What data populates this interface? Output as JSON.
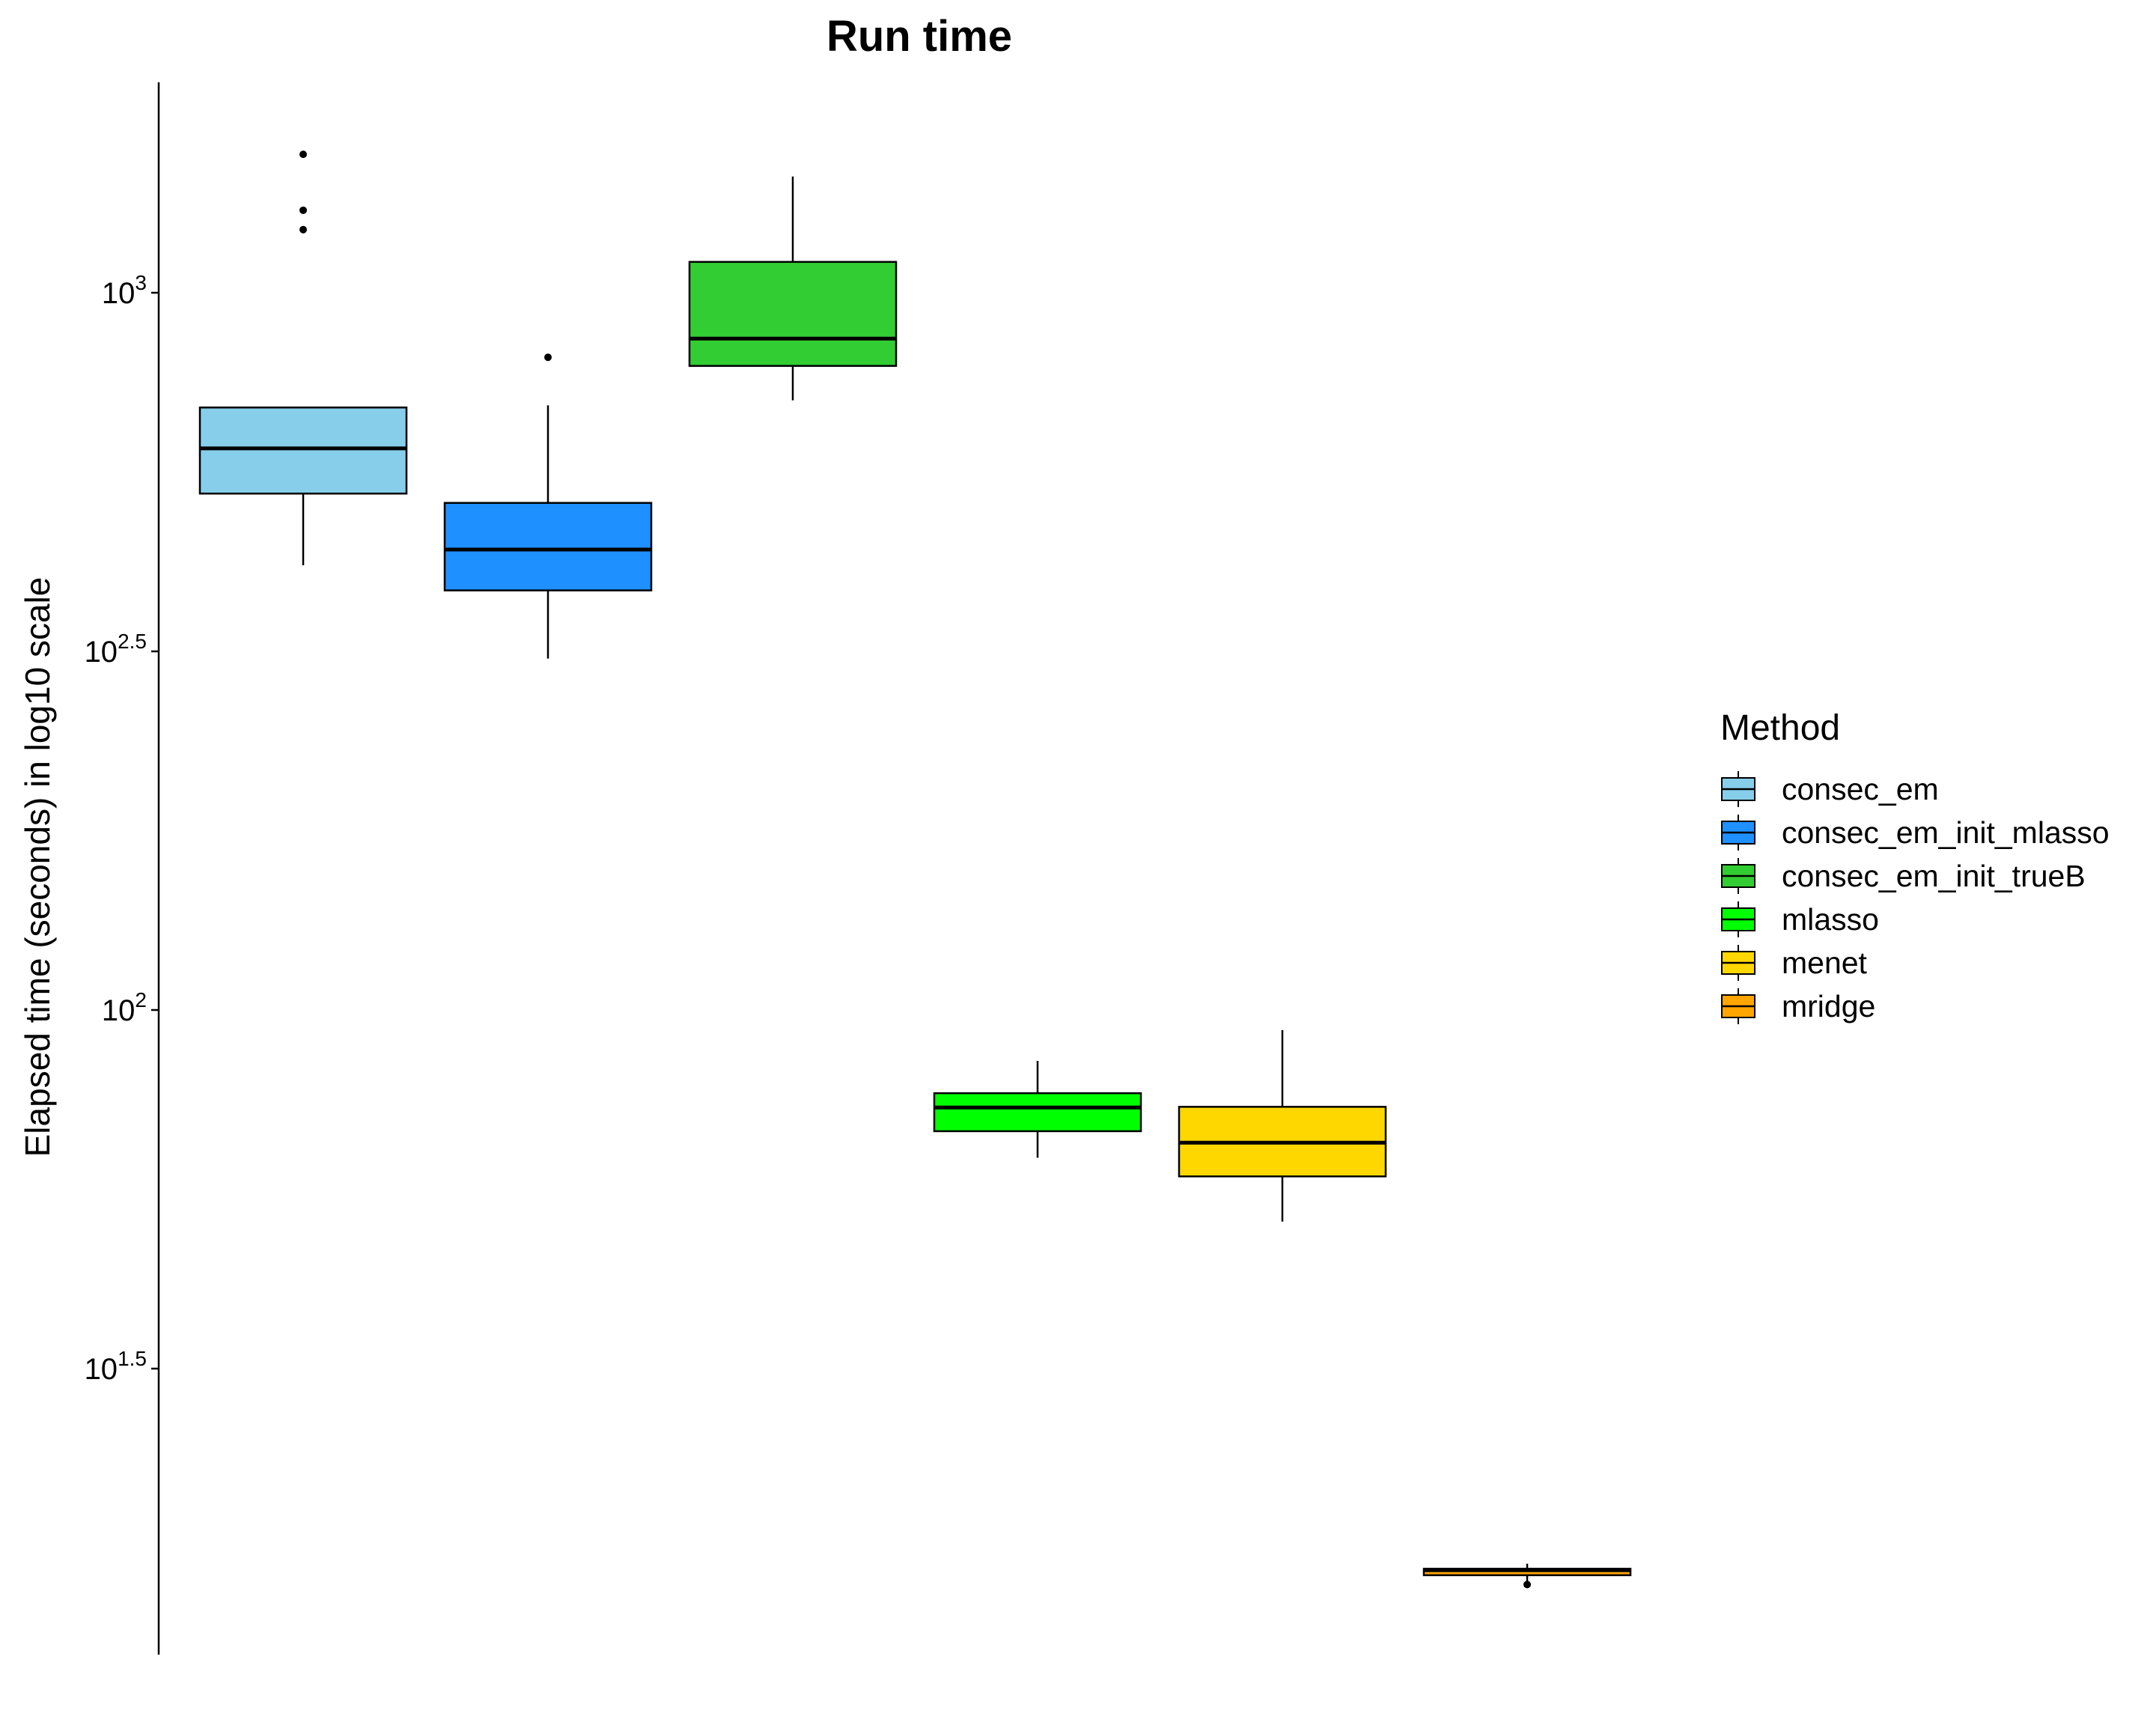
{
  "chart_data": {
    "type": "boxplot",
    "title": "Run time",
    "xlabel": "",
    "ylabel": "Elapsed time (seconds) in log10 scale",
    "y_scale": "log10",
    "ylim_log10": [
      1.105,
      3.29
    ],
    "y_ticks": [
      {
        "base": "10",
        "exp": "3",
        "log10": 3.0
      },
      {
        "base": "10",
        "exp": "2.5",
        "log10": 2.5
      },
      {
        "base": "10",
        "exp": "2",
        "log10": 2.0
      },
      {
        "base": "10",
        "exp": "1.5",
        "log10": 1.5
      }
    ],
    "grid": false,
    "legend": {
      "title": "Method",
      "position": "right"
    },
    "series": [
      {
        "name": "consec_em",
        "color": "#87CEEB",
        "log10": {
          "min": 2.62,
          "q1": 2.72,
          "median": 2.783,
          "q3": 2.84,
          "max": 2.84
        },
        "outliers_log10": [
          3.193,
          3.115,
          3.088
        ]
      },
      {
        "name": "consec_em_init_mlasso",
        "color": "#1E90FF",
        "log10": {
          "min": 2.49,
          "q1": 2.585,
          "median": 2.642,
          "q3": 2.707,
          "max": 2.843
        },
        "outliers_log10": [
          2.91
        ]
      },
      {
        "name": "consec_em_init_trueB",
        "color": "#32CD32",
        "log10": {
          "min": 2.85,
          "q1": 2.898,
          "median": 2.936,
          "q3": 3.043,
          "max": 3.162
        },
        "outliers_log10": []
      },
      {
        "name": "mlasso",
        "color": "#00FF00",
        "log10": {
          "min": 1.794,
          "q1": 1.831,
          "median": 1.864,
          "q3": 1.884,
          "max": 1.929
        },
        "outliers_log10": []
      },
      {
        "name": "menet",
        "color": "#FFD700",
        "log10": {
          "min": 1.705,
          "q1": 1.768,
          "median": 1.815,
          "q3": 1.865,
          "max": 1.972
        },
        "outliers_log10": []
      },
      {
        "name": "mridge",
        "color": "#FFA500",
        "log10": {
          "min": 1.2,
          "q1": 1.212,
          "median": 1.219,
          "q3": 1.221,
          "max": 1.228
        },
        "outliers_log10": [
          1.199
        ]
      }
    ]
  }
}
